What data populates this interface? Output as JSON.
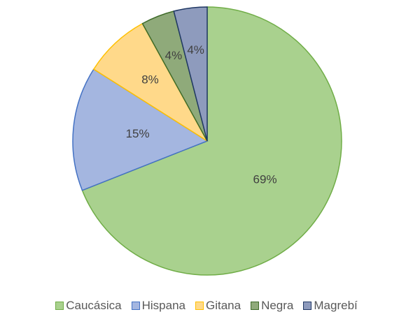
{
  "chart_data": {
    "type": "pie",
    "categories": [
      "Caucásica",
      "Hispana",
      "Gitana",
      "Negra",
      "Magrebí"
    ],
    "values": [
      69,
      15,
      8,
      4,
      4
    ],
    "value_labels": [
      "69%",
      "15%",
      "8%",
      "4%",
      "4%"
    ],
    "colors": [
      "#a9d18e",
      "#a4b6e0",
      "#ffd98a",
      "#8faa7a",
      "#8e9bbd"
    ],
    "edge_colors": [
      "#70ad47",
      "#4472c4",
      "#ffc000",
      "#3f6b2a",
      "#203864"
    ]
  }
}
